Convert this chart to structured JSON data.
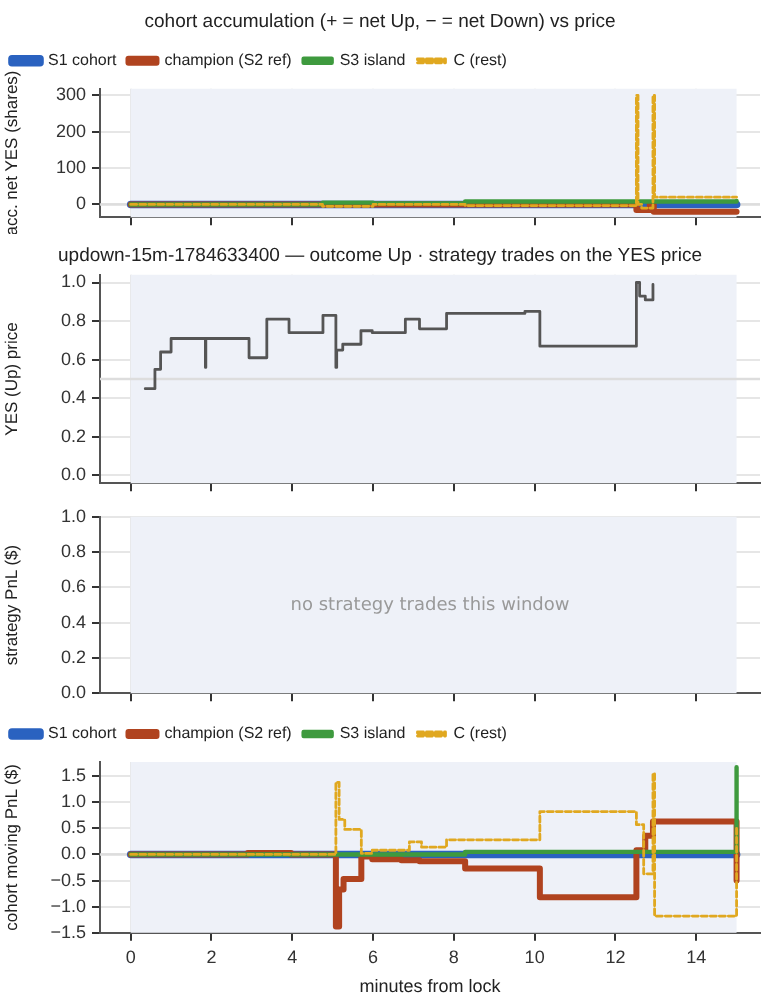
{
  "chart_data": [
    {
      "type": "step",
      "title": "cohort accumulation (+ = net Up, − = net Down) vs price",
      "ylabel": "acc. net YES (shares)",
      "xlim": [
        -0.76,
        15.58
      ],
      "xticks": [
        0,
        2,
        4,
        6,
        8,
        10,
        12,
        14
      ],
      "ylim": [
        -35,
        318
      ],
      "yticks": [
        0,
        100,
        200,
        300
      ],
      "tick_labels": "y",
      "grid": true,
      "legend": "top left",
      "bands": [
        {
          "axis": "x",
          "from": 0,
          "to": 15,
          "color": "#eef1f8"
        }
      ],
      "ref_lines": [
        {
          "axis": "y",
          "value": 0,
          "color": "#dddddd"
        }
      ],
      "series": [
        {
          "name": "S1 cohort",
          "color": "#2a62c0",
          "x": [
            0,
            15
          ],
          "values": [
            0,
            0
          ]
        },
        {
          "name": "champion (S2 ref)",
          "color": "#b0431f",
          "x": [
            0,
            12.52,
            12.6,
            12.85,
            12.95,
            15
          ],
          "values": [
            0,
            -15,
            -15,
            0,
            -20,
            -20
          ]
        },
        {
          "name": "S3 island",
          "color": "#3e9a3e",
          "x": [
            0,
            4.75,
            6.0,
            8.28,
            15
          ],
          "values": [
            0,
            5,
            3,
            8,
            10
          ]
        },
        {
          "name": "C (rest)",
          "color": "#e0a820",
          "line_style": "dashed",
          "x": [
            0,
            4.75,
            6.0,
            8.28,
            12.52,
            12.56,
            12.65,
            12.93,
            12.97,
            15
          ],
          "values": [
            0,
            -5,
            0,
            -3,
            300,
            0,
            -10,
            300,
            20,
            20
          ]
        }
      ]
    },
    {
      "type": "step",
      "title": "updown-15m-1784633400 — outcome Up · strategy trades on the YES price",
      "ylabel": "YES (Up) price",
      "xlim": [
        -0.76,
        15.58
      ],
      "xticks": [
        0,
        2,
        4,
        6,
        8,
        10,
        12,
        14
      ],
      "ylim": [
        -0.04,
        1.04
      ],
      "yticks": [
        {
          "value": 0,
          "label": "0.0"
        },
        {
          "value": 0.2,
          "label": "0.2"
        },
        {
          "value": 0.4,
          "label": "0.4"
        },
        {
          "value": 0.6,
          "label": "0.6"
        },
        {
          "value": 0.8,
          "label": "0.8"
        },
        {
          "value": 1,
          "label": "1.0"
        }
      ],
      "tick_labels": "y",
      "grid": true,
      "bands": [
        {
          "axis": "x",
          "from": 0,
          "to": 15,
          "color": "#eef1f8"
        }
      ],
      "ref_lines": [
        {
          "axis": "y",
          "value": 0.5,
          "color": "#dddddd"
        }
      ],
      "series": [
        {
          "color": "#555555",
          "x": [
            0.36,
            0.6,
            0.74,
            1.0,
            1.85,
            1.86,
            2.93,
            3.37,
            3.92,
            4.76,
            5.08,
            5.1,
            5.25,
            5.7,
            5.98,
            6.8,
            7.15,
            7.82,
            9.76,
            10.13,
            12.52,
            12.6,
            12.74,
            12.93
          ],
          "values": [
            0.45,
            0.55,
            0.64,
            0.71,
            0.56,
            0.71,
            0.61,
            0.81,
            0.74,
            0.83,
            0.56,
            0.65,
            0.68,
            0.75,
            0.74,
            0.81,
            0.76,
            0.84,
            0.85,
            0.67,
            1.0,
            0.93,
            0.91,
            0.99
          ]
        }
      ]
    },
    {
      "type": "line",
      "ylabel": "strategy PnL ($)",
      "xlim": [
        -0.76,
        15.58
      ],
      "xticks": [
        0,
        2,
        4,
        6,
        8,
        10,
        12,
        14
      ],
      "ylim": [
        0,
        1
      ],
      "yticks": [
        {
          "value": 0,
          "label": "0.0"
        },
        {
          "value": 0.2,
          "label": "0.2"
        },
        {
          "value": 0.4,
          "label": "0.4"
        },
        {
          "value": 0.6,
          "label": "0.6"
        },
        {
          "value": 0.8,
          "label": "0.8"
        },
        {
          "value": 1,
          "label": "1.0"
        }
      ],
      "tick_labels": "y",
      "grid": true,
      "bands": [
        {
          "axis": "x",
          "from": 0,
          "to": 15,
          "color": "#eef1f8"
        }
      ],
      "annotations": [
        "no strategy trades this window"
      ]
    },
    {
      "type": "step",
      "xlabel": "minutes from lock",
      "ylabel": "cohort moving PnL ($)",
      "xlim": [
        -0.76,
        15.58
      ],
      "xticks": [
        0,
        2,
        4,
        6,
        8,
        10,
        12,
        14
      ],
      "ylim": [
        -1.5,
        1.77
      ],
      "yticks": [
        {
          "value": -1.5,
          "label": "−1.5"
        },
        {
          "value": -1,
          "label": "−1.0"
        },
        {
          "value": -0.5,
          "label": "−0.5"
        },
        {
          "value": 0,
          "label": "0.0"
        },
        {
          "value": 0.5,
          "label": "0.5"
        },
        {
          "value": 1,
          "label": "1.0"
        },
        {
          "value": 1.5,
          "label": "1.5"
        }
      ],
      "grid": true,
      "legend": "top left",
      "bands": [
        {
          "axis": "x",
          "from": 0,
          "to": 15,
          "color": "#eef1f8"
        }
      ],
      "ref_lines": [
        {
          "axis": "y",
          "value": 0,
          "color": "#dddddd"
        }
      ],
      "series": [
        {
          "name": "S1 cohort",
          "color": "#2a62c0",
          "x": [
            0,
            15
          ],
          "values": [
            0,
            0
          ]
        },
        {
          "name": "champion (S2 ref)",
          "color": "#b0431f",
          "x": [
            0,
            2.9,
            3.97,
            5.08,
            5.16,
            5.27,
            5.71,
            5.98,
            6.7,
            7.15,
            8.28,
            10.13,
            12.52,
            12.74,
            12.93,
            15
          ],
          "values": [
            0,
            0.03,
            0,
            -1.38,
            -0.67,
            -0.47,
            -0.04,
            -0.09,
            -0.11,
            -0.13,
            -0.27,
            -0.82,
            0.08,
            0.36,
            0.63,
            -0.5
          ]
        },
        {
          "name": "S3 island",
          "color": "#3e9a3e",
          "x": [
            0,
            8.28,
            15
          ],
          "values": [
            0,
            0.05,
            1.67
          ]
        },
        {
          "name": "C (rest)",
          "color": "#e0a820",
          "line_style": "dashed",
          "x": [
            0,
            5.08,
            5.16,
            5.3,
            5.71,
            5.98,
            6.9,
            7.2,
            7.82,
            10.13,
            12.52,
            12.7,
            12.93,
            12.97,
            15
          ],
          "values": [
            0,
            1.38,
            0.67,
            0.48,
            0.02,
            0.08,
            0.24,
            0.14,
            0.28,
            0.82,
            0.57,
            -0.37,
            1.55,
            -1.18,
            0.5
          ]
        }
      ]
    }
  ]
}
